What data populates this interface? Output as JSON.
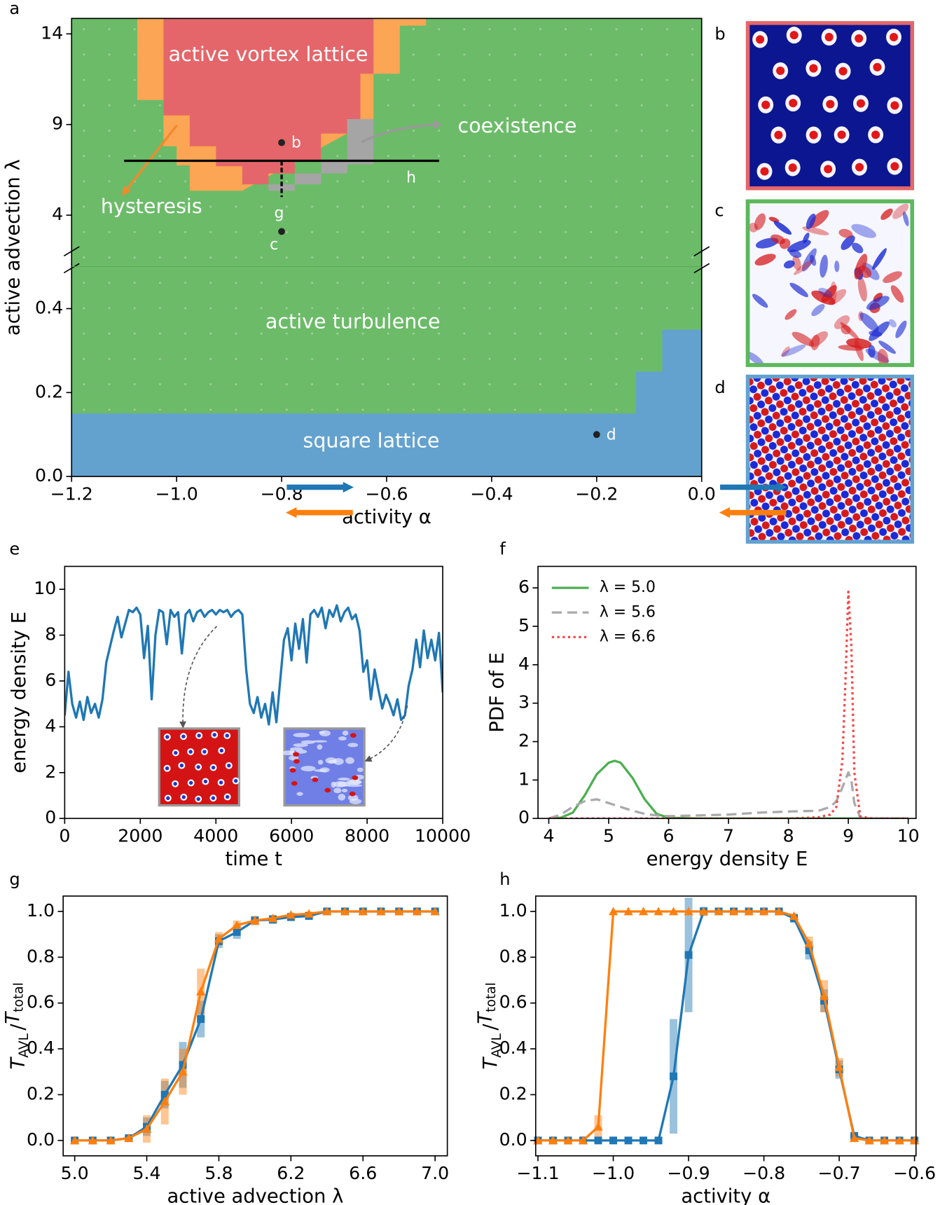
{
  "panel_labels": [
    "a",
    "b",
    "c",
    "d",
    "e",
    "f",
    "g",
    "h"
  ],
  "chart_data": [
    {
      "type": "phase",
      "xlabel": "activity α",
      "ylabel": "active advection λ",
      "background": "#6cbb69",
      "xlim": [
        -1.2,
        0
      ],
      "xticks": [
        {
          "value": -1.2,
          "label": "−1.2"
        },
        {
          "value": -1.0,
          "label": "−1.0"
        },
        {
          "value": -0.8,
          "label": "−0.8"
        },
        {
          "value": -0.6,
          "label": "−0.6"
        },
        {
          "value": -0.4,
          "label": "−0.4"
        },
        {
          "value": -0.2,
          "label": "−0.2"
        },
        {
          "value": 0,
          "label": "0.0"
        }
      ],
      "y_segments": [
        {
          "ylim": [
            0,
            0.5
          ],
          "yticks": [
            {
              "value": 0,
              "label": "0.0"
            },
            0.2,
            0.4
          ]
        },
        {
          "ylim": [
            1.16,
            14.85
          ],
          "yticks": [
            4,
            9,
            14
          ]
        }
      ],
      "regions": [
        {
          "segment": 0,
          "color": "#63a2cf",
          "points": [
            [
              -1.2,
              0
            ],
            [
              0,
              0
            ],
            [
              0,
              0.35
            ],
            [
              -0.075,
              0.35
            ],
            [
              -0.075,
              0.25
            ],
            [
              -0.125,
              0.25
            ],
            [
              -0.125,
              0.15
            ],
            [
              -1.2,
              0.15
            ]
          ]
        },
        {
          "segment": 1,
          "color": "#fca554",
          "points": [
            [
              -1.075,
              14.85
            ],
            [
              -0.525,
              14.85
            ],
            [
              -0.525,
              14.45
            ],
            [
              -0.575,
              14.45
            ],
            [
              -0.575,
              11.8
            ],
            [
              -0.625,
              11.8
            ],
            [
              -0.625,
              9.3
            ],
            [
              -0.875,
              5.35
            ],
            [
              -0.975,
              5.35
            ],
            [
              -0.975,
              6.75
            ],
            [
              -1.0,
              6.75
            ],
            [
              -1.0,
              7.8
            ],
            [
              -1.025,
              7.8
            ],
            [
              -1.025,
              10.35
            ],
            [
              -1.075,
              10.35
            ]
          ]
        },
        {
          "segment": 1,
          "color": "#e4666a",
          "points": [
            [
              -1.025,
              14.85
            ],
            [
              -0.625,
              14.85
            ],
            [
              -0.625,
              11.8
            ],
            [
              -0.65,
              11.8
            ],
            [
              -0.65,
              9.3
            ],
            [
              -0.675,
              9.3
            ],
            [
              -0.675,
              8.5
            ],
            [
              -0.725,
              8.5
            ],
            [
              -0.725,
              7.0
            ],
            [
              -0.775,
              7.0
            ],
            [
              -0.775,
              6.3
            ],
            [
              -0.825,
              6.3
            ],
            [
              -0.825,
              5.7
            ],
            [
              -0.875,
              5.7
            ],
            [
              -0.875,
              6.7
            ],
            [
              -0.925,
              6.7
            ],
            [
              -0.925,
              7.8
            ],
            [
              -0.975,
              7.8
            ],
            [
              -0.975,
              9.5
            ],
            [
              -1.025,
              9.5
            ]
          ]
        },
        {
          "segment": 1,
          "color": "#a5a5a5",
          "points": [
            [
              -0.675,
              9.3
            ],
            [
              -0.625,
              9.3
            ],
            [
              -0.625,
              6.8
            ],
            [
              -0.675,
              6.8
            ],
            [
              -0.675,
              6.3
            ],
            [
              -0.725,
              6.3
            ],
            [
              -0.725,
              5.7
            ],
            [
              -0.775,
              5.7
            ],
            [
              -0.775,
              5.35
            ],
            [
              -0.825,
              5.35
            ],
            [
              -0.825,
              5.7
            ],
            [
              -0.775,
              5.7
            ],
            [
              -0.775,
              6.3
            ],
            [
              -0.725,
              6.3
            ],
            [
              -0.725,
              7.0
            ],
            [
              -0.675,
              7.0
            ]
          ]
        }
      ],
      "annotations": [
        "active vortex lattice",
        "coexistence",
        "hysteresis",
        "active turbulence",
        "square lattice"
      ],
      "points": [
        {
          "label": "b",
          "x": -0.8,
          "y": 8.0
        },
        {
          "label": "c",
          "x": -0.8,
          "y": 3.1
        },
        {
          "label": "d",
          "x": -0.2,
          "y": 0.1
        }
      ],
      "cuts": [
        {
          "label": "h",
          "x": [
            -1.1,
            -0.5
          ],
          "y": [
            7,
            7
          ]
        },
        {
          "label": "g",
          "x": [
            -0.8,
            -0.8
          ],
          "y": [
            7,
            5
          ]
        }
      ]
    },
    {
      "type": "line",
      "xlabel": "time t",
      "ylabel": "energy density E",
      "xlim": [
        0,
        10000
      ],
      "xticks": [
        0,
        2000,
        4000,
        6000,
        8000,
        10000
      ],
      "ylim": [
        0,
        11
      ],
      "yticks": [
        0,
        2,
        4,
        6,
        8,
        10
      ],
      "x": [
        0,
        100,
        200,
        300,
        400,
        500,
        600,
        700,
        800,
        900,
        1000,
        1100,
        1200,
        1300,
        1400,
        1500,
        1600,
        1700,
        1800,
        1900,
        2000,
        2100,
        2200,
        2300,
        2400,
        2500,
        2600,
        2700,
        2800,
        2900,
        3000,
        3100,
        3200,
        3300,
        3400,
        3500,
        3600,
        3700,
        3800,
        3900,
        4000,
        4100,
        4200,
        4300,
        4400,
        4500,
        4600,
        4700,
        4800,
        4900,
        5000,
        5100,
        5200,
        5300,
        5400,
        5500,
        5600,
        5700,
        5800,
        5900,
        6000,
        6100,
        6200,
        6300,
        6400,
        6500,
        6600,
        6700,
        6800,
        6900,
        7000,
        7100,
        7200,
        7300,
        7400,
        7500,
        7600,
        7700,
        7800,
        7900,
        8000,
        8100,
        8200,
        8300,
        8400,
        8500,
        8600,
        8700,
        8800,
        8900,
        9000,
        9100,
        9200,
        9300,
        9400,
        9500,
        9600,
        9700,
        9800,
        9900,
        10000
      ],
      "series": [
        {
          "color": "#1f77b4",
          "dash": "solid",
          "values": [
            4.5,
            6.4,
            5.0,
            4.4,
            5.1,
            4.3,
            5.3,
            4.6,
            5.0,
            4.4,
            5.2,
            6.8,
            7.5,
            8.2,
            8.8,
            7.9,
            8.5,
            9.1,
            9.0,
            9.2,
            8.9,
            7.0,
            8.4,
            5.2,
            8.0,
            9.1,
            9.0,
            7.6,
            9.1,
            8.8,
            9.0,
            7.2,
            8.9,
            9.1,
            8.6,
            9.0,
            9.1,
            8.8,
            9.0,
            9.1,
            8.9,
            9.1,
            9.0,
            9.1,
            8.8,
            9.0,
            9.1,
            8.9,
            6.5,
            5.0,
            4.6,
            5.3,
            4.4,
            5.0,
            4.1,
            5.5,
            4.2,
            6.0,
            7.8,
            8.3,
            6.9,
            8.5,
            7.4,
            8.7,
            6.8,
            8.9,
            9.1,
            8.8,
            9.2,
            8.3,
            9.1,
            8.8,
            9.3,
            8.6,
            9.0,
            9.2,
            8.7,
            8.9,
            8.2,
            6.4,
            6.9,
            5.2,
            6.5,
            5.6,
            4.8,
            5.4,
            5.0,
            4.5,
            5.2,
            4.3,
            4.5,
            5.8,
            6.5,
            7.8,
            6.6,
            8.2,
            7.0,
            7.8,
            6.9,
            8.1,
            5.5
          ]
        }
      ]
    },
    {
      "type": "line",
      "xlabel": "energy density E",
      "ylabel": "PDF of E",
      "xlim": [
        3.82,
        10.13
      ],
      "xticks": [
        4,
        5,
        6,
        7,
        8,
        9,
        10
      ],
      "ylim": [
        0,
        6.56
      ],
      "yticks": [
        0,
        1,
        2,
        3,
        4,
        5,
        6
      ],
      "legend": "upper left",
      "x": [
        4.0,
        4.2,
        4.4,
        4.6,
        4.8,
        5.0,
        5.1,
        5.2,
        5.4,
        5.6,
        5.8,
        6.0,
        6.5,
        7.0,
        7.5,
        8.0,
        8.5,
        8.7,
        8.8,
        8.9,
        8.95,
        9.0,
        9.05,
        9.1,
        9.2,
        9.4,
        10.0
      ],
      "series": [
        {
          "name": "λ = 5.0",
          "color": "#4caf50",
          "dash": "solid",
          "values": [
            0,
            0.02,
            0.15,
            0.6,
            1.15,
            1.45,
            1.5,
            1.45,
            1.05,
            0.5,
            0.12,
            0.02,
            0,
            0,
            0,
            0,
            0,
            0,
            0,
            0,
            0,
            0,
            0,
            0,
            0,
            0,
            0
          ]
        },
        {
          "name": "λ = 5.6",
          "color": "#aaaaaa",
          "dash": "dashed",
          "values": [
            0,
            0.1,
            0.3,
            0.45,
            0.5,
            0.4,
            0.35,
            0.3,
            0.2,
            0.12,
            0.08,
            0.06,
            0.08,
            0.1,
            0.15,
            0.18,
            0.2,
            0.3,
            0.45,
            0.8,
            1.0,
            1.2,
            1.0,
            0.4,
            0.02,
            0,
            0
          ]
        },
        {
          "name": "λ = 6.6",
          "color": "#f44a4a",
          "dash": "dotted",
          "values": [
            0,
            0,
            0,
            0,
            0,
            0,
            0,
            0,
            0,
            0,
            0,
            0,
            0,
            0,
            0,
            0,
            0.03,
            0.1,
            0.3,
            1.5,
            3.5,
            5.9,
            4.5,
            1.2,
            0.05,
            0,
            0
          ]
        }
      ]
    },
    {
      "type": "errorline",
      "xlabel": "active advection λ",
      "ylabel": [
        "T",
        "AVL",
        "/",
        "T",
        "total"
      ],
      "xlim": [
        4.936,
        7.068
      ],
      "xticks": [
        {
          "value": 5,
          "label": "5.0"
        },
        5.4,
        5.8,
        6.2,
        6.6,
        {
          "value": 7,
          "label": "7.0"
        }
      ],
      "ylim": [
        -0.067,
        1.067
      ],
      "yticks": [
        {
          "value": 0,
          "label": "0.0"
        },
        0.2,
        0.4,
        0.6,
        0.8,
        {
          "value": 1,
          "label": "1.0"
        }
      ],
      "x": [
        5.0,
        5.1,
        5.2,
        5.3,
        5.4,
        5.5,
        5.6,
        5.7,
        5.8,
        5.9,
        6.0,
        6.1,
        6.2,
        6.3,
        6.4,
        6.5,
        6.6,
        6.7,
        6.8,
        6.9,
        7.0
      ],
      "series": [
        {
          "color": "#1f77b4",
          "marker": "square",
          "values": [
            0,
            0,
            0,
            0.01,
            0.06,
            0.2,
            0.33,
            0.53,
            0.87,
            0.91,
            0.96,
            0.965,
            0.975,
            0.98,
            1,
            1,
            1,
            1,
            1,
            1,
            1
          ],
          "errors": [
            0,
            0,
            0,
            0.01,
            0.04,
            0.06,
            0.1,
            0.08,
            0.03,
            0.03,
            0.02,
            0.02,
            0.01,
            0.01,
            0,
            0,
            0,
            0,
            0,
            0,
            0
          ]
        },
        {
          "color": "#ff7f0e",
          "marker": "triangle",
          "values": [
            0,
            0,
            0,
            0.01,
            0.05,
            0.17,
            0.3,
            0.65,
            0.88,
            0.94,
            0.96,
            0.97,
            0.985,
            0.99,
            1,
            1,
            1,
            1,
            1,
            1,
            1
          ],
          "errors": [
            0,
            0,
            0,
            0.01,
            0.06,
            0.1,
            0.1,
            0.1,
            0.03,
            0.02,
            0.02,
            0.01,
            0.01,
            0.01,
            0,
            0,
            0,
            0,
            0,
            0,
            0
          ]
        }
      ]
    },
    {
      "type": "errorline",
      "xlabel": "activity α",
      "ylabel": [
        "T",
        "AVL",
        "/",
        "T",
        "total"
      ],
      "xlim": [
        -1.103,
        -0.598
      ],
      "xticks": [
        {
          "value": -1.1,
          "label": "−1.1"
        },
        {
          "value": -1.0,
          "label": "−1.0"
        },
        {
          "value": -0.9,
          "label": "−0.9"
        },
        {
          "value": -0.8,
          "label": "−0.8"
        },
        {
          "value": -0.7,
          "label": "−0.7"
        },
        {
          "value": -0.6,
          "label": "−0.6"
        }
      ],
      "ylim": [
        -0.067,
        1.067
      ],
      "yticks": [
        {
          "value": 0,
          "label": "0.0"
        },
        0.2,
        0.4,
        0.6,
        0.8,
        {
          "value": 1,
          "label": "1.0"
        }
      ],
      "x": [
        -1.1,
        -1.08,
        -1.06,
        -1.04,
        -1.02,
        -1.0,
        -0.98,
        -0.96,
        -0.94,
        -0.92,
        -0.9,
        -0.88,
        -0.86,
        -0.84,
        -0.82,
        -0.8,
        -0.78,
        -0.76,
        -0.74,
        -0.72,
        -0.7,
        -0.68,
        -0.66,
        -0.64,
        -0.62,
        -0.6
      ],
      "series": [
        {
          "color": "#1f77b4",
          "marker": "square",
          "values": [
            0,
            0,
            0,
            0,
            0,
            0,
            0,
            0,
            0,
            0.28,
            0.81,
            1,
            1,
            1,
            1,
            1,
            1,
            0.97,
            0.83,
            0.61,
            0.31,
            0.02,
            0,
            0,
            0,
            0
          ],
          "errors": [
            0,
            0,
            0,
            0,
            0,
            0,
            0,
            0,
            0,
            0.25,
            0.25,
            0.02,
            0,
            0,
            0,
            0,
            0,
            0.02,
            0.04,
            0.05,
            0.04,
            0.01,
            0,
            0,
            0,
            0
          ]
        },
        {
          "color": "#ff7f0e",
          "marker": "triangle",
          "values": [
            0,
            0,
            0,
            0,
            0.06,
            1,
            1,
            1,
            1,
            1,
            1,
            1,
            1,
            1,
            1,
            1,
            1,
            0.98,
            0.86,
            0.63,
            0.32,
            0.01,
            0,
            0,
            0,
            0
          ],
          "errors": [
            0,
            0,
            0,
            0,
            0.05,
            0,
            0,
            0,
            0,
            0,
            0,
            0,
            0,
            0,
            0,
            0,
            0,
            0.01,
            0.03,
            0.07,
            0.04,
            0.01,
            0,
            0,
            0,
            0
          ]
        }
      ]
    }
  ]
}
